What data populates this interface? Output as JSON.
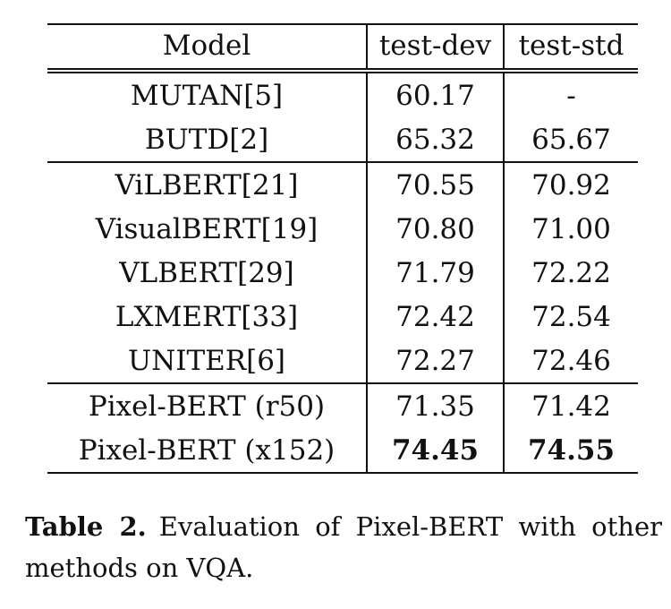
{
  "table": {
    "headers": [
      "Model",
      "test-dev",
      "test-std"
    ],
    "groups": [
      [
        {
          "model": "MUTAN[5]",
          "test_dev": "60.17",
          "test_std": "-"
        },
        {
          "model": "BUTD[2]",
          "test_dev": "65.32",
          "test_std": "65.67"
        }
      ],
      [
        {
          "model": "ViLBERT[21]",
          "test_dev": "70.55",
          "test_std": "70.92"
        },
        {
          "model": "VisualBERT[19]",
          "test_dev": "70.80",
          "test_std": "71.00"
        },
        {
          "model": "VLBERT[29]",
          "test_dev": "71.79",
          "test_std": "72.22"
        },
        {
          "model": "LXMERT[33]",
          "test_dev": "72.42",
          "test_std": "72.54"
        },
        {
          "model": "UNITER[6]",
          "test_dev": "72.27",
          "test_std": "72.46"
        }
      ],
      [
        {
          "model": "Pixel-BERT (r50)",
          "test_dev": "71.35",
          "test_std": "71.42"
        },
        {
          "model": "Pixel-BERT (x152)",
          "test_dev": "74.45",
          "test_std": "74.55",
          "bold": true
        }
      ]
    ]
  },
  "caption": {
    "label": "Table 2.",
    "text": "Evaluation of Pixel-BERT with other methods on VQA."
  }
}
